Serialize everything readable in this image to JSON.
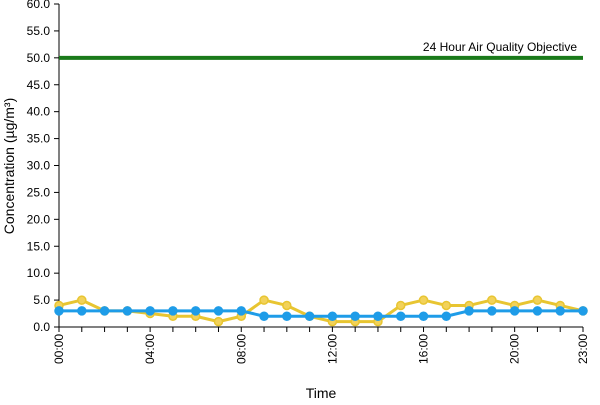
{
  "chart_data": {
    "type": "line",
    "xlabel": "Time",
    "ylabel": "Concentration (µg/m³)",
    "ylim": [
      0,
      60
    ],
    "yticks": [
      "0.0",
      "5.0",
      "10.0",
      "15.0",
      "20.0",
      "25.0",
      "30.0",
      "35.0",
      "40.0",
      "45.0",
      "50.0",
      "55.0",
      "60.0"
    ],
    "x": [
      "00:00",
      "01:00",
      "02:00",
      "03:00",
      "04:00",
      "05:00",
      "06:00",
      "07:00",
      "08:00",
      "09:00",
      "10:00",
      "11:00",
      "12:00",
      "13:00",
      "14:00",
      "15:00",
      "16:00",
      "17:00",
      "18:00",
      "19:00",
      "20:00",
      "21:00",
      "22:00",
      "23:00"
    ],
    "xtick_labels": [
      "00:00",
      "04:00",
      "08:00",
      "12:00",
      "16:00",
      "20:00",
      "23:00"
    ],
    "grid": false,
    "objective": {
      "label": "24 Hour Air Quality Objective",
      "value": 50,
      "color": "#1a7a1a"
    },
    "series": [
      {
        "color": "#e8c531",
        "marker_fill": "#f2d25a",
        "values": [
          4,
          5,
          3,
          3,
          2.5,
          2,
          2,
          1,
          2,
          5,
          4,
          2,
          1,
          1,
          1,
          4,
          5,
          4,
          4,
          5,
          4,
          5,
          4,
          3
        ]
      },
      {
        "color": "#1e9ce8",
        "marker_fill": "#1e9ce8",
        "values": [
          3,
          3,
          3,
          3,
          3,
          3,
          3,
          3,
          3,
          2,
          2,
          2,
          2,
          2,
          2,
          2,
          2,
          2,
          3,
          3,
          3,
          3,
          3,
          3
        ]
      }
    ]
  }
}
